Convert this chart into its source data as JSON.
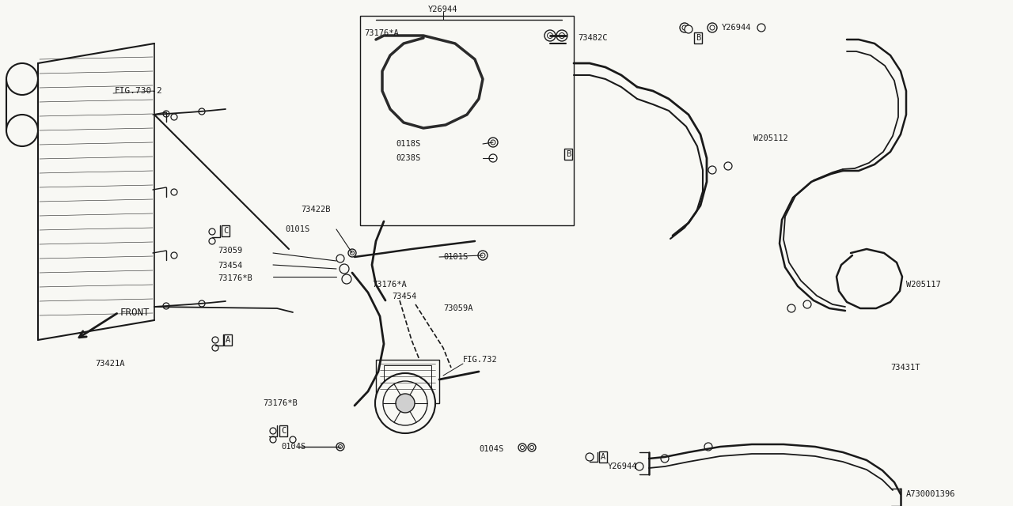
{
  "bg_color": "#f8f8f4",
  "lc": "#1a1a1a",
  "labels": {
    "FIG730": "FIG.730-2",
    "FIG732": "FIG.732",
    "FRONT": "FRONT",
    "73421A": "73421A",
    "73422B": "73422B",
    "73059": "73059",
    "73454a": "73454",
    "73176B_a": "73176*B",
    "73176B_b": "73176*B",
    "0101S_a": "0101S",
    "0101S_b": "0101S",
    "0104S_a": "0104S",
    "0104S_b": "0104S",
    "73059A": "73059A",
    "73454b": "73454",
    "73176A_a": "73176*A",
    "73176A_b": "73176*A",
    "Y26944_top": "Y26944",
    "Y26944_tr": "Y26944",
    "Y26944_br": "Y26944",
    "73482C": "73482C",
    "0118S": "0118S",
    "0238S": "0238S",
    "W205112": "W205112",
    "W205117": "W205117",
    "73431T": "73431T",
    "DIAGID": "A730001396"
  }
}
